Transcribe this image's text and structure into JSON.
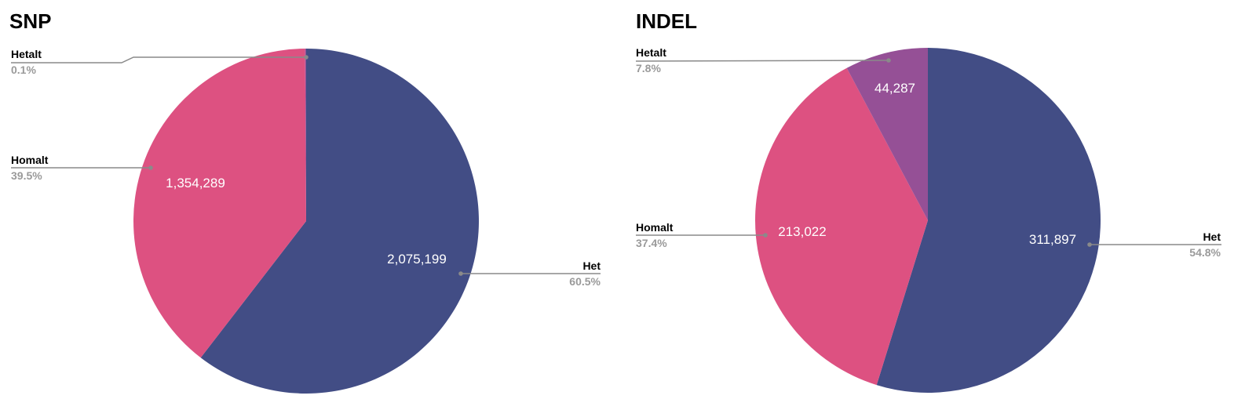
{
  "colors": {
    "Het": "#424d85",
    "Homalt": "#dd5181",
    "Hetalt": "#955096",
    "leader": "#8a8a8a",
    "label_pct": "#9a9a9a"
  },
  "chart_data": [
    {
      "type": "pie",
      "title": "SNP",
      "slices": [
        {
          "label": "Het",
          "value": 2075199,
          "value_label": "2,075,199",
          "percent": "60.5%"
        },
        {
          "label": "Homalt",
          "value": 1354289,
          "value_label": "1,354,289",
          "percent": "39.5%"
        },
        {
          "label": "Hetalt",
          "value": 3400,
          "value_label": "",
          "percent": "0.1%"
        }
      ]
    },
    {
      "type": "pie",
      "title": "INDEL",
      "slices": [
        {
          "label": "Het",
          "value": 311897,
          "value_label": "311,897",
          "percent": "54.8%"
        },
        {
          "label": "Homalt",
          "value": 213022,
          "value_label": "213,022",
          "percent": "37.4%"
        },
        {
          "label": "Hetalt",
          "value": 44287,
          "value_label": "44,287",
          "percent": "7.8%"
        }
      ]
    }
  ]
}
